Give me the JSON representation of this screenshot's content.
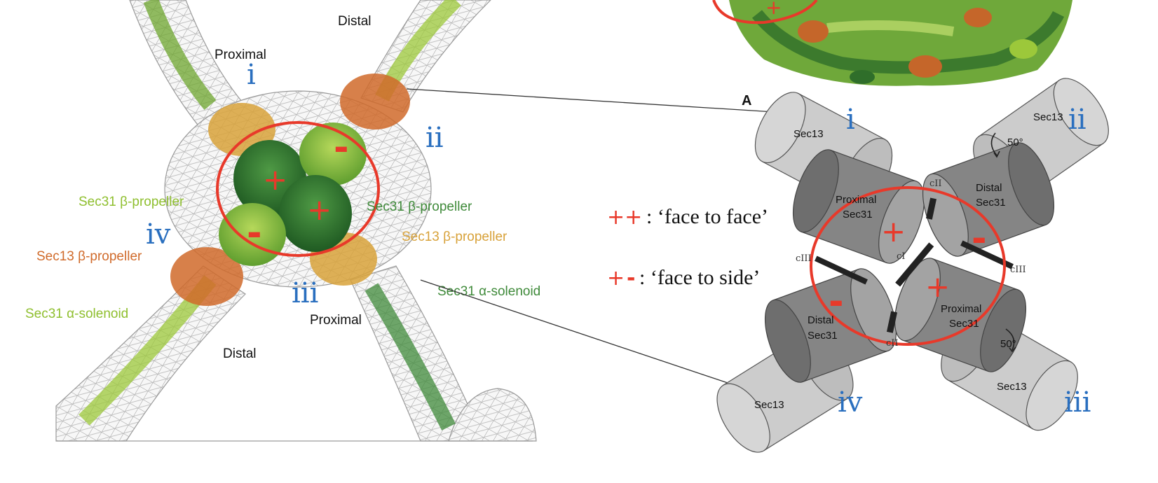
{
  "left_panel": {
    "labels": {
      "distal_top": "Distal",
      "proximal_top": "Proximal",
      "sec31_bp_left": "Sec31 β-propeller",
      "sec31_bp_right": "Sec31 β-propeller",
      "sec13_bp_left": "Sec13 β-propeller",
      "sec13_bp_right": "Sec13 β-propeller",
      "sec31_as_left": "Sec31 α-solenoid",
      "sec31_as_right": "Sec31 α-solenoid",
      "proximal_bottom": "Proximal",
      "distal_bottom": "Distal"
    },
    "roman": {
      "i": "i",
      "ii": "ii",
      "iii": "iii",
      "iv": "iv"
    },
    "signs": {
      "plus1": "+",
      "plus2": "+",
      "minus1": "-",
      "minus2": "-"
    }
  },
  "legend": {
    "pp_symbol": "++",
    "pp_text": ": ‘face to face’",
    "pm_plus": "+",
    "pm_minus": "-",
    "pm_text": ": ‘face to side’"
  },
  "right_panel": {
    "panel_letter": "A",
    "cylinders": {
      "sec13_tl": "Sec13",
      "sec13_tr": "Sec13",
      "sec13_bl": "Sec13",
      "sec13_br": "Sec13",
      "proximal_tl_1": "Proximal",
      "proximal_tl_2": "Sec31",
      "distal_tr_1": "Distal",
      "distal_tr_2": "Sec31",
      "distal_bl_1": "Distal",
      "distal_bl_2": "Sec31",
      "proximal_br_1": "Proximal",
      "proximal_br_2": "Sec31"
    },
    "angles": {
      "top": "50°",
      "bottom": "50°"
    },
    "contacts": {
      "cII_top": "cII",
      "cII_bottom": "cII",
      "cI": "cI",
      "cIII_left": "cIII",
      "cIII_right": "cIII"
    },
    "roman": {
      "i": "i",
      "ii": "ii",
      "iii": "iii",
      "iv": "iv"
    },
    "signs": {
      "plus1": "+",
      "plus2": "+",
      "minus1": "-",
      "minus2": "-"
    }
  },
  "colors": {
    "sec31_light": "#9cc83a",
    "sec31_dark": "#3f8a3a",
    "sec13_orange": "#d06a2a",
    "sec13_gold": "#d8a23a",
    "highlight_red": "#e8392a",
    "roman_blue": "#2a6fbf",
    "cylinder_light": "#c9c9c9",
    "cylinder_dark": "#7a7a7a"
  }
}
